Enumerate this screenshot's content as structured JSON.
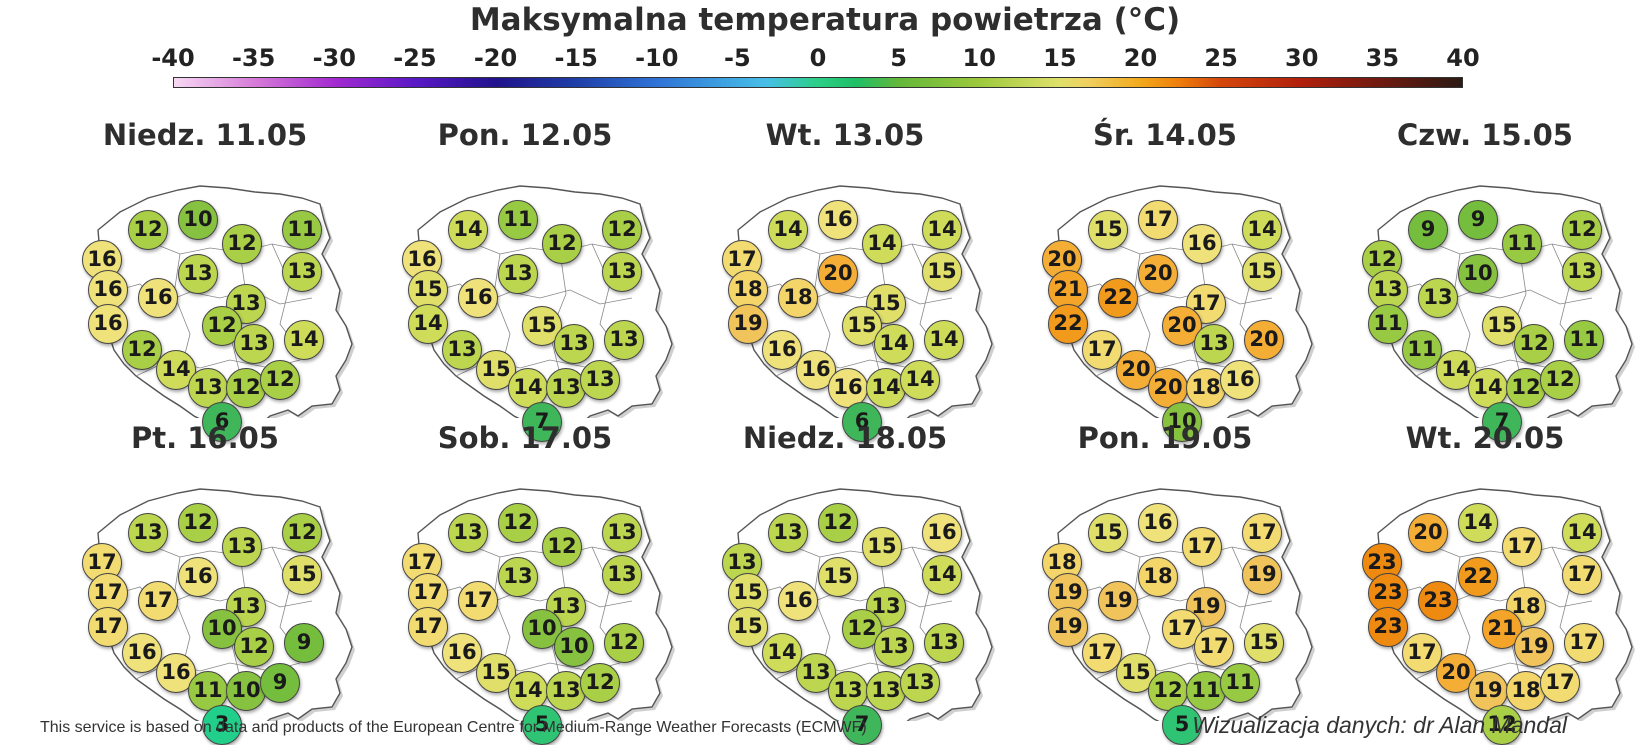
{
  "title": "Maksymalna temperatura powietrza (°C)",
  "scale": {
    "ticks": [
      "-40",
      "-35",
      "-30",
      "-25",
      "-20",
      "-15",
      "-10",
      "-5",
      "0",
      "5",
      "10",
      "15",
      "20",
      "25",
      "30",
      "35",
      "40"
    ],
    "min": -40,
    "max": 40
  },
  "days": [
    {
      "label": "Niedz. 11.05",
      "values": [
        16,
        12,
        10,
        12,
        11,
        13,
        16,
        16,
        13,
        13,
        16,
        12,
        13,
        14,
        12,
        14,
        13,
        12,
        12,
        6
      ]
    },
    {
      "label": "Pon. 12.05",
      "values": [
        16,
        14,
        11,
        12,
        12,
        13,
        15,
        16,
        13,
        14,
        15,
        13,
        13,
        13,
        15,
        14,
        13,
        13,
        7
      ]
    },
    {
      "label": "Wt. 13.05",
      "values": [
        17,
        14,
        16,
        14,
        14,
        15,
        18,
        18,
        20,
        15,
        19,
        15,
        14,
        14,
        16,
        16,
        16,
        14,
        14,
        6
      ]
    },
    {
      "label": "Śr. 14.05",
      "values": [
        20,
        15,
        17,
        16,
        14,
        15,
        21,
        22,
        20,
        17,
        22,
        20,
        13,
        20,
        17,
        20,
        20,
        18,
        16,
        10
      ]
    },
    {
      "label": "Czw. 15.05",
      "values": [
        12,
        9,
        9,
        11,
        12,
        13,
        13,
        13,
        10,
        11,
        15,
        12,
        11,
        11,
        14,
        14,
        12,
        12,
        7
      ]
    },
    {
      "label": "Pt. 16.05",
      "values": [
        17,
        13,
        12,
        13,
        12,
        15,
        17,
        17,
        16,
        13,
        17,
        10,
        12,
        9,
        16,
        16,
        11,
        10,
        9,
        3
      ]
    },
    {
      "label": "Sob. 17.05",
      "values": [
        17,
        13,
        12,
        12,
        13,
        13,
        17,
        17,
        13,
        13,
        17,
        10,
        10,
        12,
        16,
        15,
        14,
        13,
        12,
        5
      ]
    },
    {
      "label": "Niedz. 18.05",
      "values": [
        13,
        13,
        12,
        15,
        16,
        14,
        15,
        16,
        15,
        13,
        15,
        12,
        13,
        13,
        14,
        13,
        13,
        13,
        13,
        7
      ]
    },
    {
      "label": "Pon. 19.05",
      "values": [
        18,
        15,
        16,
        17,
        17,
        19,
        19,
        19,
        18,
        19,
        19,
        17,
        17,
        15,
        17,
        15,
        12,
        11,
        11,
        5
      ]
    },
    {
      "label": "Wt. 20.05",
      "values": [
        23,
        20,
        14,
        17,
        14,
        17,
        23,
        23,
        22,
        18,
        23,
        21,
        19,
        17,
        17,
        20,
        19,
        18,
        17,
        12
      ]
    }
  ],
  "footer": {
    "source": "This service is based on data and products of the European Centre for Medium-Range Weather Forecasts (ECMWF)",
    "credit": "Wizualizacja danych: dr Alan Mandal"
  }
}
